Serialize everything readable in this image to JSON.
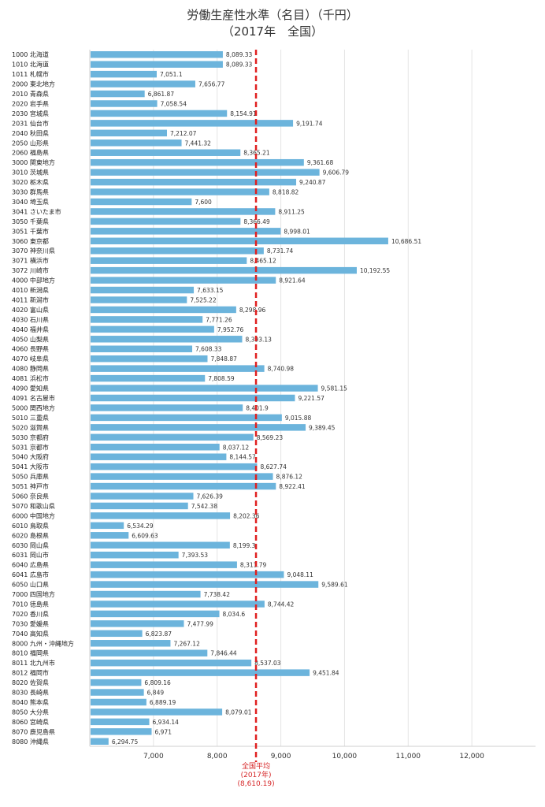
{
  "chart_data": {
    "type": "bar",
    "orientation": "horizontal",
    "title": "労働生産性水準（名目）（千円）",
    "subtitle": "（2017年　全国）",
    "bar_color": "#6cb4dc",
    "avg_color": "#e02020",
    "xlim": [
      6000,
      13000
    ],
    "xticks": [
      7000,
      8000,
      9000,
      10000,
      11000,
      12000
    ],
    "xtick_labels": [
      "7,000",
      "8,000",
      "9,000",
      "10,000",
      "11,000",
      "12,000"
    ],
    "reference_line": {
      "value": 8610.19,
      "label_lines": [
        "全国平均",
        "(2017年)",
        "(8,610.19)"
      ]
    },
    "categories": [
      "1000 北海道",
      "1010 北海道",
      "1011 札幌市",
      "2000 東北地方",
      "2010 青森県",
      "2020 岩手県",
      "2030 宮城県",
      "2031 仙台市",
      "2040 秋田県",
      "2050 山形県",
      "2060 福島県",
      "3000 関東地方",
      "3010 茨城県",
      "3020 栃木県",
      "3030 群馬県",
      "3040 埼玉県",
      "3041 さいたま市",
      "3050 千葉県",
      "3051 千葉市",
      "3060 東京都",
      "3070 神奈川県",
      "3071 横浜市",
      "3072 川崎市",
      "4000 中部地方",
      "4010 新潟県",
      "4011 新潟市",
      "4020 富山県",
      "4030 石川県",
      "4040 福井県",
      "4050 山梨県",
      "4060 長野県",
      "4070 岐阜県",
      "4080 静岡県",
      "4081 浜松市",
      "4090 愛知県",
      "4091 名古屋市",
      "5000 関西地方",
      "5010 三重県",
      "5020 滋賀県",
      "5030 京都府",
      "5031 京都市",
      "5040 大阪府",
      "5041 大阪市",
      "5050 兵庫県",
      "5051 神戸市",
      "5060 奈良県",
      "5070 和歌山県",
      "6000 中国地方",
      "6010 鳥取県",
      "6020 島根県",
      "6030 岡山県",
      "6031 岡山市",
      "6040 広島県",
      "6041 広島市",
      "6050 山口県",
      "7000 四国地方",
      "7010 徳島県",
      "7020 香川県",
      "7030 愛媛県",
      "7040 高知県",
      "8000 九州・沖縄地方",
      "8010 福岡県",
      "8011 北九州市",
      "8012 福岡市",
      "8020 佐賀県",
      "8030 長崎県",
      "8040 熊本県",
      "8050 大分県",
      "8060 宮崎県",
      "8070 鹿児島県",
      "8080 沖縄県"
    ],
    "values": [
      8089.33,
      8089.33,
      7051.1,
      7656.77,
      6861.87,
      7058.54,
      8154.91,
      9191.74,
      7212.07,
      7441.32,
      8365.21,
      9361.68,
      9606.79,
      9240.87,
      8818.82,
      7600,
      8911.25,
      8366.49,
      8998.01,
      10686.51,
      8731.74,
      8465.12,
      10192.55,
      8921.64,
      7633.15,
      7525.22,
      8298.96,
      7771.26,
      7952.76,
      8393.13,
      7608.33,
      7848.87,
      8740.98,
      7808.59,
      9581.15,
      9221.57,
      8401.9,
      9015.88,
      9389.45,
      8569.23,
      8037.12,
      8144.57,
      8627.74,
      8876.12,
      8922.41,
      7626.39,
      7542.38,
      8202.36,
      6534.29,
      6609.63,
      8199.3,
      7393.53,
      8311.79,
      9048.11,
      9589.61,
      7738.42,
      8744.42,
      8034.6,
      7477.99,
      6823.87,
      7267.12,
      7846.44,
      8537.03,
      9451.84,
      6809.16,
      6849,
      6889.19,
      8079.01,
      6934.14,
      6971,
      6294.75
    ],
    "value_labels": [
      "8,089.33",
      "8,089.33",
      "7,051.1",
      "7,656.77",
      "6,861.87",
      "7,058.54",
      "8,154.91",
      "9,191.74",
      "7,212.07",
      "7,441.32",
      "8,365.21",
      "9,361.68",
      "9,606.79",
      "9,240.87",
      "8,818.82",
      "7,600",
      "8,911.25",
      "8,366.49",
      "8,998.01",
      "10,686.51",
      "8,731.74",
      "8,465.12",
      "10,192.55",
      "8,921.64",
      "7,633.15",
      "7,525.22",
      "8,298.96",
      "7,771.26",
      "7,952.76",
      "8,393.13",
      "7,608.33",
      "7,848.87",
      "8,740.98",
      "7,808.59",
      "9,581.15",
      "9,221.57",
      "8,401.9",
      "9,015.88",
      "9,389.45",
      "8,569.23",
      "8,037.12",
      "8,144.57",
      "8,627.74",
      "8,876.12",
      "8,922.41",
      "7,626.39",
      "7,542.38",
      "8,202.36",
      "6,534.29",
      "6,609.63",
      "8,199.3",
      "7,393.53",
      "8,311.79",
      "9,048.11",
      "9,589.61",
      "7,738.42",
      "8,744.42",
      "8,034.6",
      "7,477.99",
      "6,823.87",
      "7,267.12",
      "7,846.44",
      "8,537.03",
      "9,451.84",
      "6,809.16",
      "6,849",
      "6,889.19",
      "8,079.01",
      "6,934.14",
      "6,971",
      "6,294.75"
    ]
  }
}
